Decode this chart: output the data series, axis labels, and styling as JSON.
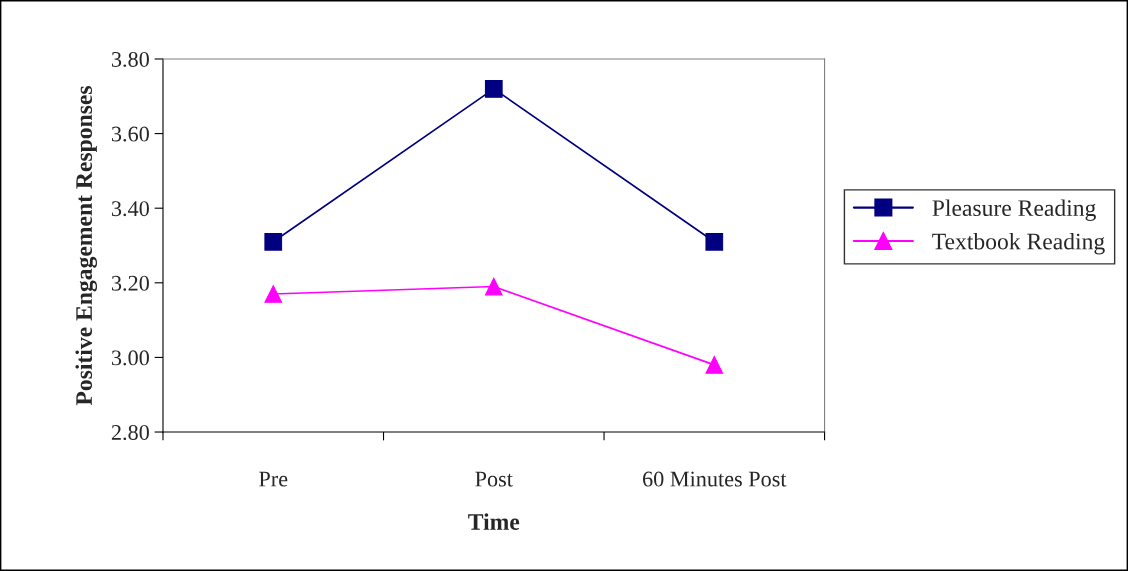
{
  "chart_data": {
    "type": "line",
    "xlabel": "Time",
    "ylabel": "Positive Engagement Responses",
    "categories": [
      "Pre",
      "Post",
      "60 Minutes Post"
    ],
    "series": [
      {
        "name": "Pleasure Reading",
        "color": "#000080",
        "values": [
          3.31,
          3.72,
          3.31
        ],
        "marker": "square"
      },
      {
        "name": "Textbook Reading",
        "color": "#ff00ff",
        "values": [
          3.17,
          3.19,
          2.98
        ],
        "marker": "triangle"
      }
    ],
    "ylim": [
      2.8,
      3.8
    ],
    "yticks": [
      {
        "value": 2.8,
        "label": "2.80"
      },
      {
        "value": 3.0,
        "label": "3.00"
      },
      {
        "value": 3.2,
        "label": "3.20"
      },
      {
        "value": 3.4,
        "label": "3.40"
      },
      {
        "value": 3.6,
        "label": "3.60"
      },
      {
        "value": 3.8,
        "label": "3.80"
      }
    ],
    "grid": false,
    "legend": "right",
    "line_style": "solid"
  }
}
